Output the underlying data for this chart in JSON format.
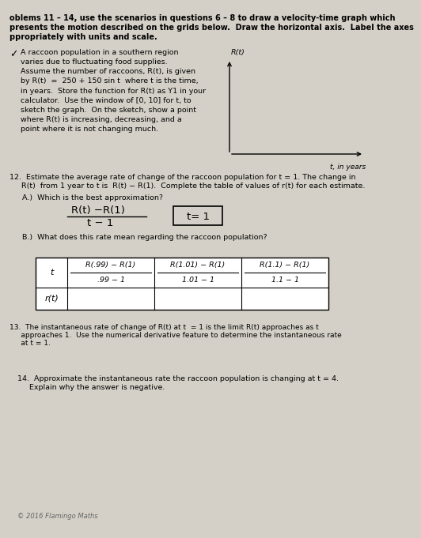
{
  "bg_color": "#d4d0c7",
  "page_width": 4.61,
  "page_height": 6.61,
  "header_bold": true,
  "header_line1": "oblems 11 – 14, use the scenarios in questions 6 – 8 to draw a velocity-time graph which",
  "header_line2": "presents the motion described on the grids below.  Draw the horizontal axis.  Label the axes",
  "header_line3": "ppropriately with units and scale.",
  "problem11_marker": "✓",
  "problem11_text": "A raccoon population in a southern region\nvaries due to fluctuating food supplies.\nAssume the number of raccoons, R(t), is given\nby R(t)  =  250 + 150 sin t  where t is the time,\nin years.  Store the function for R(t) as Y1 in your\ncalculator.  Use the window of [0, 10] for t, to\nsketch the graph.  On the sketch, show a point\nwhere R(t) is increasing, decreasing, and a\npoint where it is not changing much.",
  "axis_ylabel": "R(t)",
  "axis_xlabel": "t, in years",
  "problem12_line1": "12.  Estimate the average rate of change of the raccoon population for t = 1. The change in",
  "problem12_line2": "     R(t)  from 1 year to t is  R(t) − R(1).  Complete the table of values of r(t) for each estimate.",
  "partA_label": "A.)  Which is the best approximation?",
  "formula_numerator": "R(t) −R(1)",
  "formula_denominator": "t − 1",
  "box_text": "t= 1",
  "partB_label": "B.)  What does this rate mean regarding the raccoon population?",
  "table_col0_label": "t",
  "table_col1_top": "R(.99) − R(1)",
  "table_col1_bot": ".99 − 1",
  "table_col2_top": "R(1.01) − R(1)",
  "table_col2_bot": "1.01 − 1",
  "table_col3_top": "R(1.1) − R(1)",
  "table_col3_bot": "1.1 − 1",
  "table_row2_label": "r(t)",
  "problem13_line1": "13.  The instantaneous rate of change of R(t) at t  = 1 is the limit R(t) approaches as t",
  "problem13_line2": "     approaches 1.  Use the numerical derivative feature to determine the instantaneous rate",
  "problem13_line3": "     at t = 1.",
  "problem14_line1": "14.  Approximate the instantaneous rate the raccoon population is changing at t = 4.",
  "problem14_line2": "     Explain why the answer is negative.",
  "footer_text": "© 2016 Flamingo Maths"
}
